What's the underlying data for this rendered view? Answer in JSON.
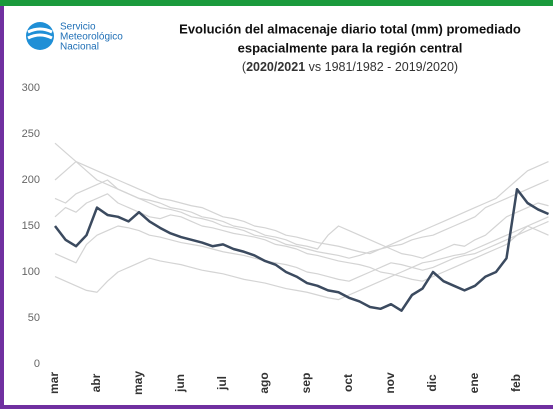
{
  "logo": {
    "lines": [
      "Servicio",
      "Meteorológico",
      "Nacional"
    ]
  },
  "chart_data": {
    "type": "line",
    "title": [
      "Evolución del almacenaje diario total (mm) promediado",
      "espacialmente para la región central"
    ],
    "subtitle": [
      "(",
      "2020/2021",
      " vs 1981/1982 - 2019/2020)"
    ],
    "categories": [
      "mar",
      null,
      null,
      null,
      "abr",
      null,
      null,
      null,
      "may",
      null,
      null,
      null,
      "jun",
      null,
      null,
      null,
      "jul",
      null,
      null,
      null,
      "ago",
      null,
      null,
      null,
      "sep",
      null,
      null,
      null,
      "oct",
      null,
      null,
      null,
      "nov",
      null,
      null,
      null,
      "dic",
      null,
      null,
      null,
      "ene",
      null,
      null,
      null,
      "feb",
      null,
      null,
      null
    ],
    "ylim": [
      0,
      300
    ],
    "yticks": [
      0,
      50,
      100,
      150,
      200,
      250,
      300
    ],
    "grid": false,
    "series": [
      {
        "color": "#d4d4d4",
        "values": [
          200,
          210,
          220,
          215,
          210,
          205,
          200,
          195,
          190,
          185,
          180,
          178,
          175,
          172,
          170,
          165,
          160,
          158,
          155,
          150,
          148,
          145,
          140,
          138,
          135,
          132,
          130,
          128,
          125,
          122,
          120,
          125,
          128,
          130,
          135,
          138,
          140,
          145,
          150,
          155,
          160,
          170,
          175,
          180,
          185,
          190,
          195,
          200
        ]
      },
      {
        "color": "#d4d4d4",
        "values": [
          180,
          175,
          185,
          190,
          195,
          200,
          190,
          185,
          180,
          178,
          175,
          170,
          168,
          165,
          160,
          158,
          155,
          150,
          148,
          145,
          140,
          138,
          135,
          130,
          128,
          125,
          140,
          150,
          145,
          140,
          135,
          130,
          125,
          120,
          118,
          115,
          120,
          125,
          130,
          128,
          135,
          140,
          150,
          160,
          165,
          170,
          175,
          172
        ]
      },
      {
        "color": "#d4d4d4",
        "values": [
          120,
          115,
          110,
          130,
          140,
          145,
          150,
          148,
          145,
          140,
          138,
          135,
          132,
          130,
          128,
          125,
          122,
          120,
          118,
          115,
          112,
          110,
          108,
          105,
          100,
          98,
          95,
          92,
          90,
          95,
          100,
          105,
          110,
          108,
          105,
          102,
          105,
          110,
          115,
          118,
          120,
          125,
          130,
          135,
          140,
          150,
          145,
          140
        ]
      },
      {
        "color": "#d4d4d4",
        "values": [
          160,
          170,
          165,
          175,
          180,
          185,
          175,
          170,
          165,
          160,
          158,
          162,
          160,
          155,
          150,
          148,
          145,
          142,
          140,
          138,
          135,
          130,
          128,
          125,
          120,
          118,
          115,
          112,
          110,
          108,
          105,
          100,
          98,
          95,
          92,
          90,
          95,
          100,
          105,
          110,
          115,
          120,
          125,
          130,
          140,
          145,
          150,
          155
        ]
      },
      {
        "color": "#d4d4d4",
        "values": [
          95,
          90,
          85,
          80,
          78,
          90,
          100,
          105,
          110,
          115,
          112,
          110,
          108,
          105,
          102,
          100,
          98,
          95,
          92,
          90,
          88,
          85,
          82,
          80,
          78,
          75,
          72,
          70,
          75,
          80,
          85,
          90,
          95,
          100,
          105,
          110,
          112,
          115,
          118,
          120,
          125,
          130,
          135,
          140,
          145,
          150,
          155,
          160
        ]
      },
      {
        "color": "#d4d4d4",
        "values": [
          240,
          230,
          220,
          210,
          200,
          195,
          190,
          185,
          180,
          175,
          170,
          168,
          165,
          160,
          158,
          155,
          150,
          148,
          145,
          140,
          138,
          135,
          130,
          128,
          125,
          122,
          120,
          118,
          115,
          118,
          122,
          125,
          130,
          135,
          140,
          145,
          150,
          155,
          160,
          165,
          170,
          175,
          180,
          190,
          200,
          210,
          215,
          220
        ]
      },
      {
        "color": "#3b4a5f",
        "values": [
          150,
          135,
          128,
          140,
          170,
          162,
          160,
          155,
          165,
          155,
          148,
          142,
          138,
          135,
          132,
          128,
          130,
          125,
          122,
          118,
          112,
          108,
          100,
          95,
          88,
          85,
          80,
          78,
          72,
          68,
          62,
          60,
          65,
          58,
          75,
          82,
          100,
          90,
          85,
          80,
          85,
          95,
          100,
          115,
          190,
          175,
          168,
          163
        ]
      }
    ]
  }
}
